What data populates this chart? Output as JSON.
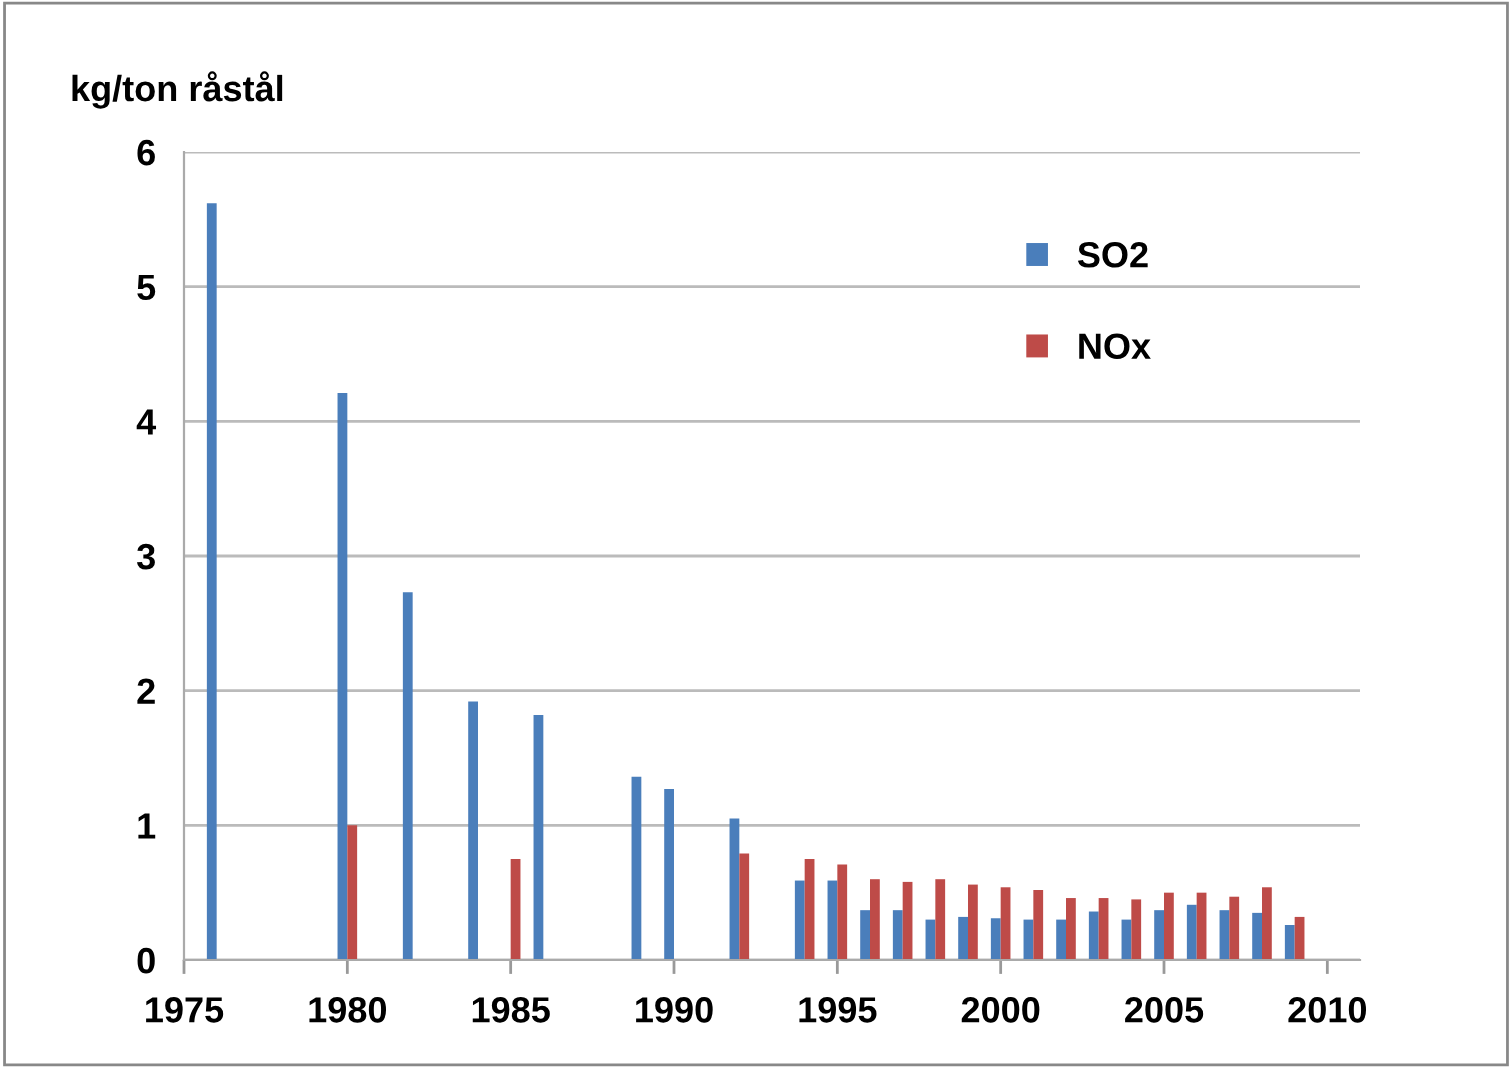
{
  "chart_data": {
    "type": "bar",
    "ylabel": "kg/ton råstål",
    "xlim": [
      1975,
      2011
    ],
    "xticks": [
      1975,
      1980,
      1985,
      1990,
      1995,
      2000,
      2005,
      2010
    ],
    "ylim": [
      0,
      6
    ],
    "yticks": [
      0,
      1,
      2,
      3,
      4,
      5,
      6
    ],
    "grid": "y",
    "legend": "top right",
    "series": [
      {
        "name": "SO2",
        "color": "#4a7ebb",
        "x": [
          1976,
          1980,
          1982,
          1984,
          1986,
          1989,
          1990,
          1992,
          1994,
          1995,
          1996,
          1997,
          1998,
          1999,
          2000,
          2001,
          2002,
          2003,
          2004,
          2005,
          2006,
          2007,
          2008,
          2009
        ],
        "values": [
          5.62,
          4.21,
          2.73,
          1.92,
          1.82,
          1.36,
          1.27,
          1.05,
          0.59,
          0.59,
          0.37,
          0.37,
          0.3,
          0.32,
          0.31,
          0.3,
          0.3,
          0.36,
          0.3,
          0.37,
          0.41,
          0.37,
          0.35,
          0.26
        ]
      },
      {
        "name": "NOx",
        "color": "#be4b48",
        "x": [
          1980,
          1985,
          1992,
          1994,
          1995,
          1996,
          1997,
          1998,
          1999,
          2000,
          2001,
          2002,
          2003,
          2004,
          2005,
          2006,
          2007,
          2008,
          2009
        ],
        "values": [
          1.0,
          0.75,
          0.79,
          0.75,
          0.71,
          0.6,
          0.58,
          0.6,
          0.56,
          0.54,
          0.52,
          0.46,
          0.46,
          0.45,
          0.5,
          0.5,
          0.47,
          0.54,
          0.32
        ]
      }
    ]
  }
}
